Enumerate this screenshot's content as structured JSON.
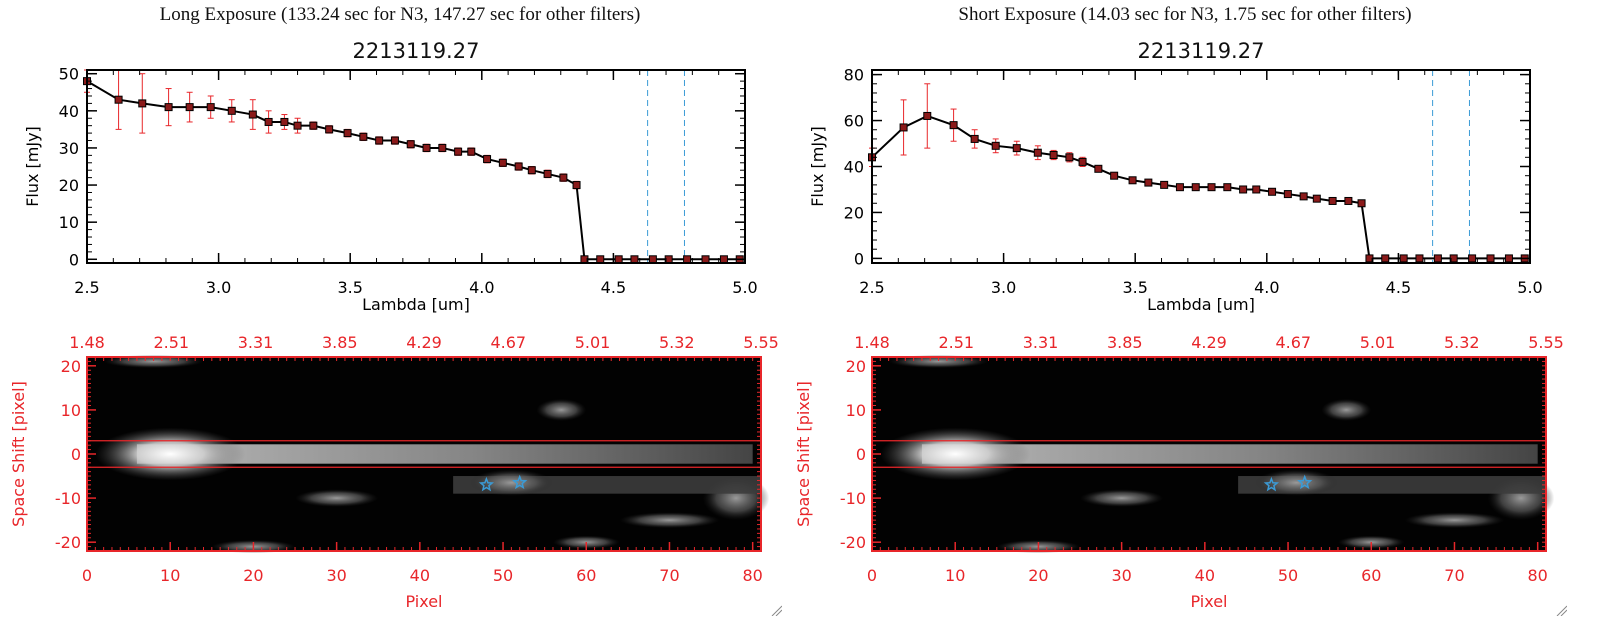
{
  "panels": [
    {
      "title": "Long Exposure (133.24 sec for N3, 147.27 sec for other filters)",
      "plot_title": "2213119.27",
      "ylabel": "Flux [mJy]",
      "xlabel": "Lambda [um]",
      "yticks": [
        "0",
        "10",
        "20",
        "30",
        "40",
        "50"
      ],
      "xticks": [
        "2.5",
        "3.0",
        "3.5",
        "4.0",
        "4.5",
        "5.0"
      ],
      "img_ylabel": "Space Shift [pixel]",
      "img_xlabel": "Pixel",
      "img_yticks": [
        "20",
        "10",
        "0",
        "-10",
        "-20"
      ],
      "img_xticks": [
        "0",
        "10",
        "20",
        "30",
        "40",
        "50",
        "60",
        "70",
        "80"
      ],
      "img_top_ticks": [
        "1.48",
        "2.51",
        "3.31",
        "3.85",
        "4.29",
        "4.67",
        "5.01",
        "5.32",
        "5.55"
      ]
    },
    {
      "title": "Short Exposure (14.03 sec for N3, 1.75 sec for other filters)",
      "plot_title": "2213119.27",
      "ylabel": "Flux [mJy]",
      "xlabel": "Lambda [um]",
      "yticks": [
        "0",
        "20",
        "40",
        "60",
        "80"
      ],
      "xticks": [
        "2.5",
        "3.0",
        "3.5",
        "4.0",
        "4.5",
        "5.0"
      ],
      "img_ylabel": "Space Shift [pixel]",
      "img_xlabel": "Pixel",
      "img_yticks": [
        "20",
        "10",
        "0",
        "-10",
        "-20"
      ],
      "img_xticks": [
        "0",
        "10",
        "20",
        "30",
        "40",
        "50",
        "60",
        "70",
        "80"
      ],
      "img_top_ticks": [
        "1.48",
        "2.51",
        "3.31",
        "3.85",
        "4.29",
        "4.67",
        "5.01",
        "5.32",
        "5.55"
      ]
    }
  ],
  "colors": {
    "axis_red": "#e8262a",
    "guide_blue": "#3b9bd6",
    "marker": "#8b1a1a",
    "errbar": "#e8262a"
  },
  "chart_data": [
    {
      "type": "line",
      "title": "2213119.27",
      "xlabel": "Lambda [um]",
      "ylabel": "Flux [mJy]",
      "xlim": [
        2.5,
        5.0
      ],
      "ylim": [
        -1,
        51
      ],
      "vlines": [
        4.63,
        4.77
      ],
      "series": [
        {
          "x": [
            2.5,
            2.62,
            2.71,
            2.81,
            2.89,
            2.97,
            3.05,
            3.13,
            3.19,
            3.25,
            3.3,
            3.36,
            3.42,
            3.49,
            3.55,
            3.61,
            3.67,
            3.73,
            3.79,
            3.85,
            3.91,
            3.96,
            4.02,
            4.08,
            4.14,
            4.19,
            4.25,
            4.31,
            4.36,
            4.39,
            4.45,
            4.52,
            4.58,
            4.65,
            4.71,
            4.78,
            4.85,
            4.92,
            4.98
          ],
          "y": [
            48,
            43,
            42,
            41,
            41,
            41,
            40,
            39,
            37,
            37,
            36,
            36,
            35,
            34,
            33,
            32,
            32,
            31,
            30,
            30,
            29,
            29,
            27,
            26,
            25,
            24,
            23,
            22,
            20,
            0,
            0,
            0,
            0,
            0,
            0,
            0,
            0,
            0,
            0
          ],
          "err": [
            3,
            8,
            8,
            5,
            4,
            3,
            3,
            4,
            3,
            2,
            2,
            1,
            1,
            1,
            1,
            1,
            1,
            1,
            1,
            1,
            1,
            1,
            1,
            1,
            1,
            1,
            1,
            1,
            1,
            0,
            0,
            0,
            0,
            0,
            0,
            0,
            0,
            0,
            0
          ]
        }
      ]
    },
    {
      "type": "line",
      "title": "2213119.27",
      "xlabel": "Lambda [um]",
      "ylabel": "Flux [mJy]",
      "xlim": [
        2.5,
        5.0
      ],
      "ylim": [
        -2,
        82
      ],
      "vlines": [
        4.63,
        4.77
      ],
      "series": [
        {
          "x": [
            2.5,
            2.62,
            2.71,
            2.81,
            2.89,
            2.97,
            3.05,
            3.13,
            3.19,
            3.25,
            3.3,
            3.36,
            3.42,
            3.49,
            3.55,
            3.61,
            3.67,
            3.73,
            3.79,
            3.85,
            3.91,
            3.96,
            4.02,
            4.08,
            4.14,
            4.19,
            4.25,
            4.31,
            4.36,
            4.39,
            4.45,
            4.52,
            4.58,
            4.65,
            4.71,
            4.78,
            4.85,
            4.92,
            4.98
          ],
          "y": [
            44,
            57,
            62,
            58,
            52,
            49,
            48,
            46,
            45,
            44,
            42,
            39,
            36,
            34,
            33,
            32,
            31,
            31,
            31,
            31,
            30,
            30,
            29,
            28,
            27,
            26,
            25,
            25,
            24,
            0,
            0,
            0,
            0,
            0,
            0,
            0,
            0,
            0,
            0
          ],
          "err": [
            4,
            12,
            14,
            7,
            4,
            3,
            3,
            3,
            2,
            2,
            2,
            1,
            1,
            1,
            1,
            1,
            1,
            1,
            1,
            1,
            1,
            1,
            1,
            1,
            1,
            1,
            1,
            1,
            1,
            0,
            0,
            0,
            0,
            0,
            0,
            0,
            0,
            0,
            0
          ]
        }
      ]
    },
    {
      "type": "heatmap",
      "xlabel": "Pixel",
      "ylabel": "Space Shift [pixel]",
      "xlim": [
        0,
        81
      ],
      "ylim": [
        -22,
        22
      ],
      "top_axis": [
        1.48,
        2.51,
        3.31,
        3.85,
        4.29,
        4.67,
        5.01,
        5.32,
        5.55
      ],
      "hlines": [
        3,
        -3
      ],
      "stars": [
        [
          48,
          -7
        ],
        [
          52,
          -6.5
        ]
      ]
    },
    {
      "type": "heatmap",
      "xlabel": "Pixel",
      "ylabel": "Space Shift [pixel]",
      "xlim": [
        0,
        81
      ],
      "ylim": [
        -22,
        22
      ],
      "top_axis": [
        1.48,
        2.51,
        3.31,
        3.85,
        4.29,
        4.67,
        5.01,
        5.32,
        5.55
      ],
      "hlines": [
        3,
        -3
      ],
      "stars": [
        [
          48,
          -7
        ],
        [
          52,
          -6.5
        ]
      ]
    }
  ]
}
